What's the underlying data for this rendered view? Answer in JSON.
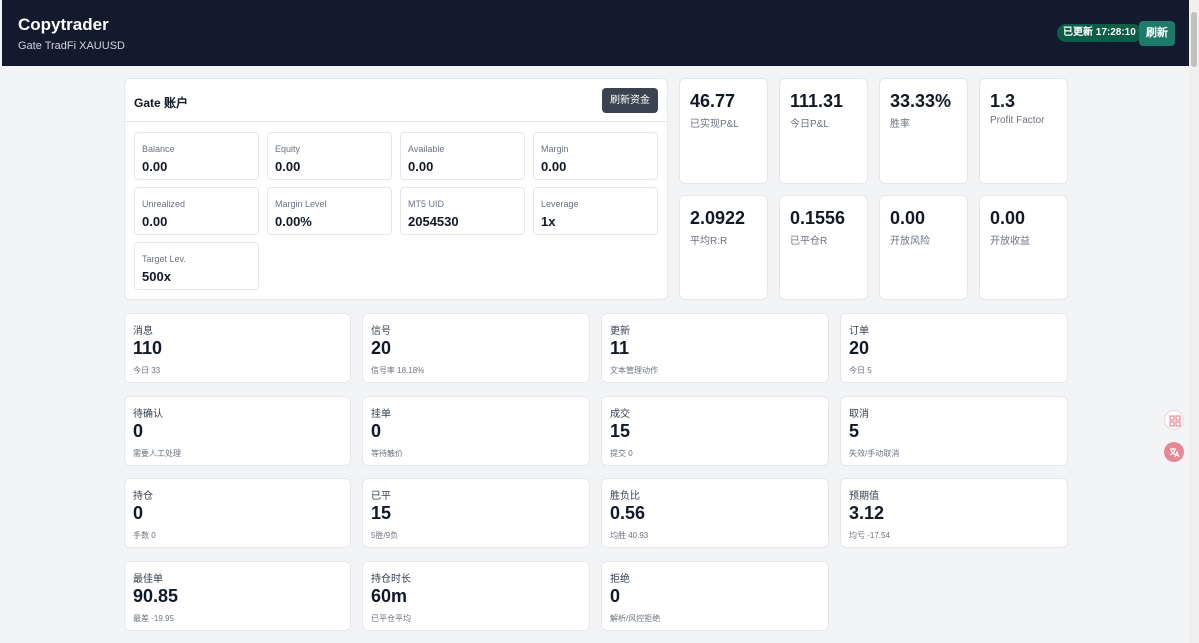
{
  "header": {
    "title": "Copytrader",
    "subtitle": "Gate TradFi XAUUSD",
    "status_badge": "已更新 17:28:10",
    "refresh_label": "刷新"
  },
  "account": {
    "title": "Gate 账户",
    "refresh_funds_label": "刷新资金",
    "fields": [
      {
        "label": "Balance",
        "value": "0.00"
      },
      {
        "label": "Equity",
        "value": "0.00"
      },
      {
        "label": "Available",
        "value": "0.00"
      },
      {
        "label": "Margin",
        "value": "0.00"
      },
      {
        "label": "Unrealized",
        "value": "0.00"
      },
      {
        "label": "Margin Level",
        "value": "0.00%"
      },
      {
        "label": "MT5 UID",
        "value": "2054530"
      },
      {
        "label": "Leverage",
        "value": "1x"
      },
      {
        "label": "Target Lev.",
        "value": "500x"
      }
    ]
  },
  "kpis": [
    {
      "value": "46.77",
      "label": "已实现P&L"
    },
    {
      "value": "111.31",
      "label": "今日P&L"
    },
    {
      "value": "33.33%",
      "label": "胜率"
    },
    {
      "value": "1.3",
      "label": "Profit Factor"
    },
    {
      "value": "2.0922",
      "label": "平均R:R"
    },
    {
      "value": "0.1556",
      "label": "已平仓R"
    },
    {
      "value": "0.00",
      "label": "开放风险"
    },
    {
      "value": "0.00",
      "label": "开放收益"
    }
  ],
  "stats": [
    {
      "label": "消息",
      "value": "110",
      "sub": "今日 33"
    },
    {
      "label": "信号",
      "value": "20",
      "sub": "信号率 18.18%"
    },
    {
      "label": "更新",
      "value": "11",
      "sub": "文本管理动作"
    },
    {
      "label": "订单",
      "value": "20",
      "sub": "今日 5"
    },
    {
      "label": "待确认",
      "value": "0",
      "sub": "需要人工处理"
    },
    {
      "label": "挂单",
      "value": "0",
      "sub": "等待触价"
    },
    {
      "label": "成交",
      "value": "15",
      "sub": "提交 0"
    },
    {
      "label": "取消",
      "value": "5",
      "sub": "失效/手动取消"
    },
    {
      "label": "持仓",
      "value": "0",
      "sub": "手数 0"
    },
    {
      "label": "已平",
      "value": "15",
      "sub": "5胜/9负"
    },
    {
      "label": "胜负比",
      "value": "0.56",
      "sub": "均胜 40.93"
    },
    {
      "label": "预期值",
      "value": "3.12",
      "sub": "均亏 -17.54"
    },
    {
      "label": "最佳单",
      "value": "90.85",
      "sub": "最差 -19.95"
    },
    {
      "label": "持仓时长",
      "value": "60m",
      "sub": "已平仓平均"
    },
    {
      "label": "拒绝",
      "value": "0",
      "sub": "解析/风控拒绝"
    }
  ],
  "side_icons": [
    "apps-icon",
    "translate-icon"
  ]
}
